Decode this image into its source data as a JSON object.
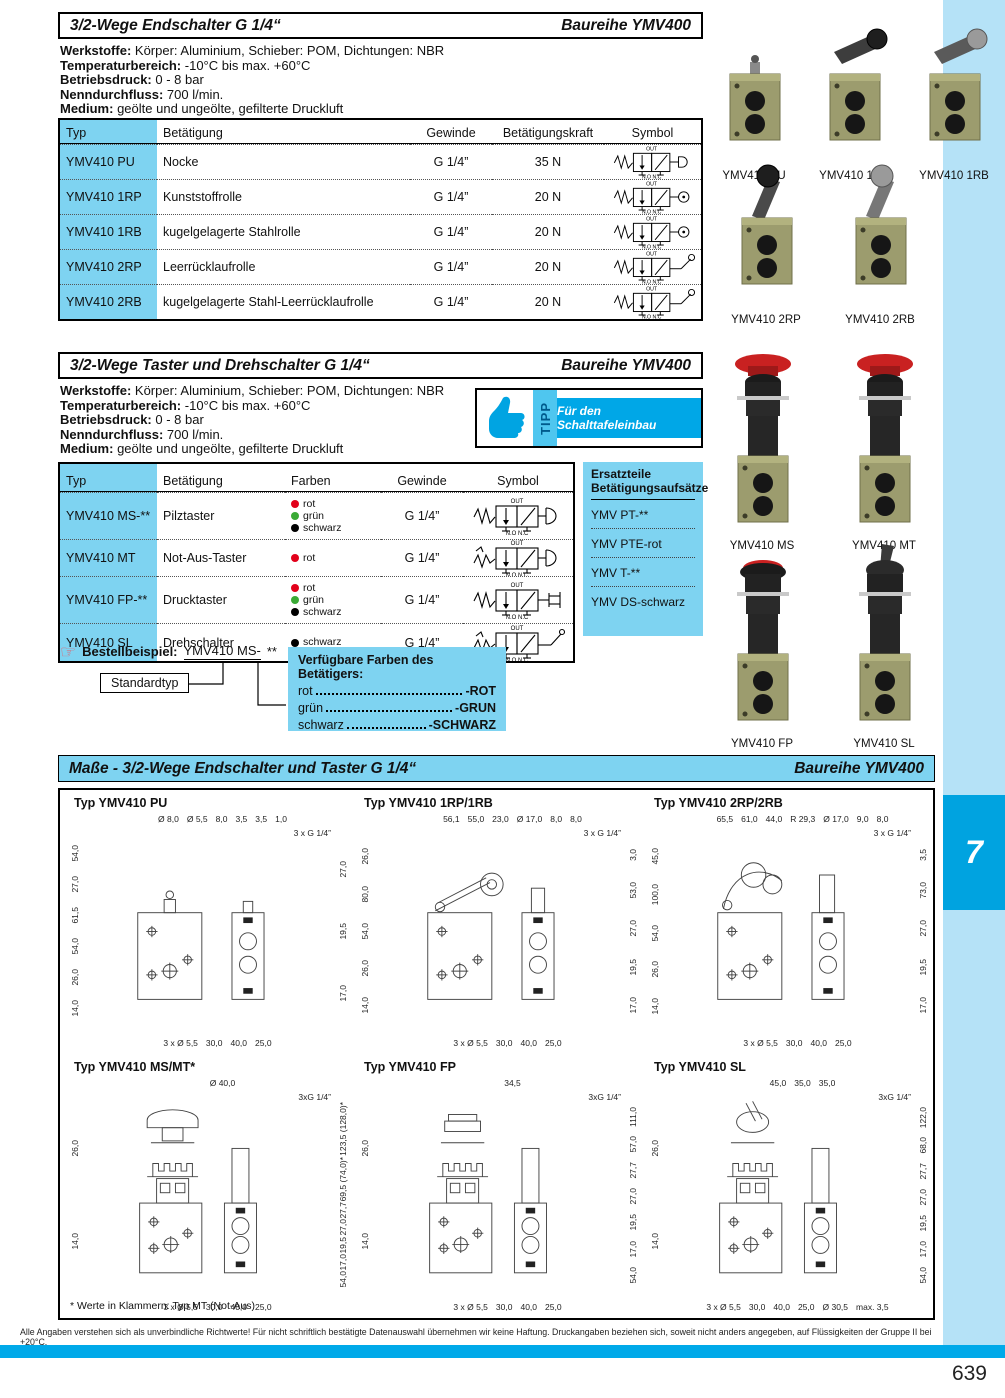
{
  "page": {
    "number": "639",
    "side_tab": "7",
    "disclaimer": "Alle Angaben verstehen sich als unverbindliche Richtwerte! Für nicht schriftlich bestätigte Datenauswahl übernehmen wir keine Haftung. Druckangaben beziehen sich, soweit nicht anders angegeben, auf Flüssigkeiten der Gruppe II bei +20°C.",
    "footnote": "* Werte in Klammern: Typ MT (Not-Aus)"
  },
  "colors": {
    "cyan": "#7ed3f1",
    "band": "#b5e2f7",
    "blue": "#00a3e0",
    "bottom_bar": "#00a9e9",
    "red": "#e2001a",
    "green": "#3aaa35",
    "black": "#000000",
    "olive": "#9c9c6e"
  },
  "symbols": {
    "top": "OUT",
    "bottom": "N.O N.C"
  },
  "section1": {
    "title": "3/2-Wege Endschalter G 1/4“",
    "series": "Baureihe YMV400",
    "specs": [
      {
        "label": "Werkstoffe:",
        "value": "Körper: Aluminium, Schieber: POM,  Dichtungen: NBR"
      },
      {
        "label": "Temperaturbereich:",
        "value": "-10°C bis max. +60°C"
      },
      {
        "label": "Betriebsdruck:",
        "value": "0 - 8 bar"
      },
      {
        "label": "Nenndurchfluss:",
        "value": "700 l/min."
      },
      {
        "label": "Medium:",
        "value": "geölte und ungeölte, gefilterte Druckluft"
      }
    ],
    "table": {
      "headers": [
        "Typ",
        "Betätigung",
        "Gewinde",
        "Betätigungskraft",
        "Symbol"
      ],
      "rows": [
        {
          "typ": "YMV410 PU",
          "betaetigung": "Nocke",
          "gewinde": "G 1/4”",
          "kraft": "35 N",
          "symbol": "plunger"
        },
        {
          "typ": "YMV410 1RP",
          "betaetigung": "Kunststoffrolle",
          "gewinde": "G 1/4”",
          "kraft": "20 N",
          "symbol": "roller"
        },
        {
          "typ": "YMV410 1RB",
          "betaetigung": "kugelgelagerte Stahlrolle",
          "gewinde": "G 1/4”",
          "kraft": "20 N",
          "symbol": "roller"
        },
        {
          "typ": "YMV410 2RP",
          "betaetigung": "Leerrücklaufrolle",
          "gewinde": "G 1/4”",
          "kraft": "20 N",
          "symbol": "lever-roller"
        },
        {
          "typ": "YMV410 2RB",
          "betaetigung": "kugelgelagerte Stahl-Leerrücklaufrolle",
          "gewinde": "G 1/4”",
          "kraft": "20 N",
          "symbol": "lever-roller"
        }
      ]
    },
    "photos_row1": [
      {
        "label": "YMV410 PU",
        "type": "pu"
      },
      {
        "label": "YMV410 1RP",
        "type": "rp"
      },
      {
        "label": "YMV410 1RB",
        "type": "rb"
      }
    ],
    "photos_row2": [
      {
        "label": "YMV410 2RP",
        "type": "2rp"
      },
      {
        "label": "YMV410 2RB",
        "type": "2rb"
      }
    ]
  },
  "section2": {
    "title": "3/2-Wege Taster und Drehschalter G 1/4“",
    "series": "Baureihe YMV400",
    "specs": [
      {
        "label": "Werkstoffe:",
        "value": "Körper: Aluminium, Schieber: POM,  Dichtungen: NBR"
      },
      {
        "label": "Temperaturbereich:",
        "value": "-10°C bis max. +60°C"
      },
      {
        "label": "Betriebsdruck:",
        "value": "0 - 8 bar"
      },
      {
        "label": "Nenndurchfluss:",
        "value": "700 l/min."
      },
      {
        "label": "Medium:",
        "value": "geölte und ungeölte, gefilterte Druckluft"
      }
    ],
    "tipp": {
      "label": "TIPP",
      "text": "Für den Schalttafeleinbau"
    },
    "table": {
      "headers": [
        "Typ",
        "Betätigung",
        "Farben",
        "Gewinde",
        "Symbol"
      ],
      "rows": [
        {
          "typ": "YMV410 MS-**",
          "betaetigung": "Pilztaster",
          "farben": [
            {
              "name": "rot",
              "hex": "#e2001a"
            },
            {
              "name": "grün",
              "hex": "#3aaa35"
            },
            {
              "name": "schwarz",
              "hex": "#000000"
            }
          ],
          "gewinde": "G 1/4”",
          "symbol": "mushroom",
          "rh": 47
        },
        {
          "typ": "YMV410 MT",
          "betaetigung": "Not-Aus-Taster",
          "farben": [
            {
              "name": "rot",
              "hex": "#e2001a"
            }
          ],
          "gewinde": "G 1/4”",
          "symbol": "mushroom-detent",
          "rh": 37
        },
        {
          "typ": "YMV410 FP-**",
          "betaetigung": "Drucktaster",
          "farben": [
            {
              "name": "rot",
              "hex": "#e2001a"
            },
            {
              "name": "grün",
              "hex": "#3aaa35"
            },
            {
              "name": "schwarz",
              "hex": "#000000"
            }
          ],
          "gewinde": "G 1/4”",
          "symbol": "push",
          "rh": 47
        },
        {
          "typ": "YMV410 SL",
          "betaetigung": "Drehschalter",
          "farben": [
            {
              "name": "schwarz",
              "hex": "#000000"
            }
          ],
          "gewinde": "G 1/4”",
          "symbol": "selector",
          "rh": 38
        }
      ]
    },
    "ersatzteile": {
      "title_line1": "Ersatzteile",
      "title_line2": "Betätigungsaufsätze",
      "items": [
        "YMV PT-**",
        "YMV PTE-rot",
        "YMV T-**",
        "YMV DS-schwarz"
      ]
    },
    "photos_row1": [
      {
        "label": "YMV410 MS",
        "type": "ms"
      },
      {
        "label": "YMV410 MT",
        "type": "mt"
      }
    ],
    "photos_row2": [
      {
        "label": "YMV410 FP",
        "type": "fp"
      },
      {
        "label": "YMV410 SL",
        "type": "sl"
      }
    ]
  },
  "bestellbeispiel": {
    "pointer": "☞",
    "label": "Bestellbeispiel:",
    "code": "YMV410 MS-",
    "suffix": "**",
    "standard": "Standardtyp",
    "farben_title": "Verfügbare Farben des Betätigers:",
    "farben": [
      {
        "name": "rot",
        "code": "-ROT"
      },
      {
        "name": "grün",
        "code": "-GRUN"
      },
      {
        "name": "schwarz",
        "code": "-SCHWARZ"
      }
    ]
  },
  "section3": {
    "title": "Maße - 3/2-Wege Endschalter und Taster G 1/4“",
    "series": "Baureihe YMV400",
    "drawings": [
      {
        "title": "Typ YMV410 PU",
        "type": "pu",
        "dims_top": [
          "Ø 8,0",
          "Ø 5,5",
          "8,0",
          "3,5",
          "3,5",
          "1,0"
        ],
        "dims_left": [
          "54,0",
          "27,0",
          "61,5",
          "54,0",
          "26,0",
          "14,0"
        ],
        "dims_right": [
          "27,0",
          "19,5",
          "17,0"
        ],
        "dims_bottom": [
          "3 x Ø 5,5",
          "30,0",
          "40,0",
          "25,0"
        ],
        "note": "3 x G 1/4”"
      },
      {
        "title": "Typ YMV410 1RP/1RB",
        "type": "rp",
        "dims_top": [
          "56,1",
          "55,0",
          "23,0",
          "Ø 17,0",
          "8,0",
          "8,0"
        ],
        "dims_left": [
          "26,0",
          "80,0",
          "54,0",
          "26,0",
          "14,0"
        ],
        "dims_right": [
          "3,0",
          "53,0",
          "27,0",
          "19,5",
          "17,0"
        ],
        "dims_bottom": [
          "3 x Ø 5,5",
          "30,0",
          "40,0",
          "25,0"
        ],
        "note": "3 x G 1/4”"
      },
      {
        "title": "Typ YMV410 2RP/2RB",
        "type": "2rp",
        "dims_top": [
          "65,5",
          "61,0",
          "44,0",
          "R 29,3",
          "Ø 17,0",
          "9,0",
          "8,0"
        ],
        "dims_left": [
          "45,0",
          "100,0",
          "54,0",
          "26,0",
          "14,0"
        ],
        "dims_right": [
          "3,5",
          "73,0",
          "27,0",
          "19,5",
          "17,0"
        ],
        "dims_bottom": [
          "3 x Ø 5,5",
          "30,0",
          "40,0",
          "25,0"
        ],
        "note": "3 x G 1/4”"
      },
      {
        "title": "Typ YMV410 MS/MT*",
        "type": "ms",
        "dims_top": [
          "Ø 40,0"
        ],
        "dims_left": [
          "26,0",
          "14,0"
        ],
        "dims_right": [
          "123,5 (128,0)*",
          "69,5 (74,0)*",
          "27,7",
          "27,0",
          "19,5",
          "17,0",
          "54,0"
        ],
        "dims_bottom": [
          "3 x Ø 5,5",
          "30,0",
          "40,0",
          "25,0"
        ],
        "note": "3xG 1/4”"
      },
      {
        "title": "Typ YMV410 FP",
        "type": "fp",
        "dims_top": [
          "34,5"
        ],
        "dims_left": [
          "26,0",
          "14,0"
        ],
        "dims_right": [
          "111,0",
          "57,0",
          "27,7",
          "27,0",
          "19,5",
          "17,0",
          "54,0"
        ],
        "dims_bottom": [
          "3 x Ø 5,5",
          "30,0",
          "40,0",
          "25,0"
        ],
        "note": "3xG 1/4”"
      },
      {
        "title": "Typ YMV410 SL",
        "type": "sl",
        "dims_top": [
          "45,0",
          "35,0",
          "35,0"
        ],
        "dims_left": [
          "26,0",
          "14,0"
        ],
        "dims_right": [
          "122,0",
          "68,0",
          "27,7",
          "27,0",
          "19,5",
          "17,0",
          "54,0"
        ],
        "dims_bottom": [
          "3 x Ø 5,5",
          "30,0",
          "40,0",
          "25,0",
          "Ø 30,5",
          "max. 3,5"
        ],
        "note": "3xG 1/4”"
      }
    ]
  }
}
